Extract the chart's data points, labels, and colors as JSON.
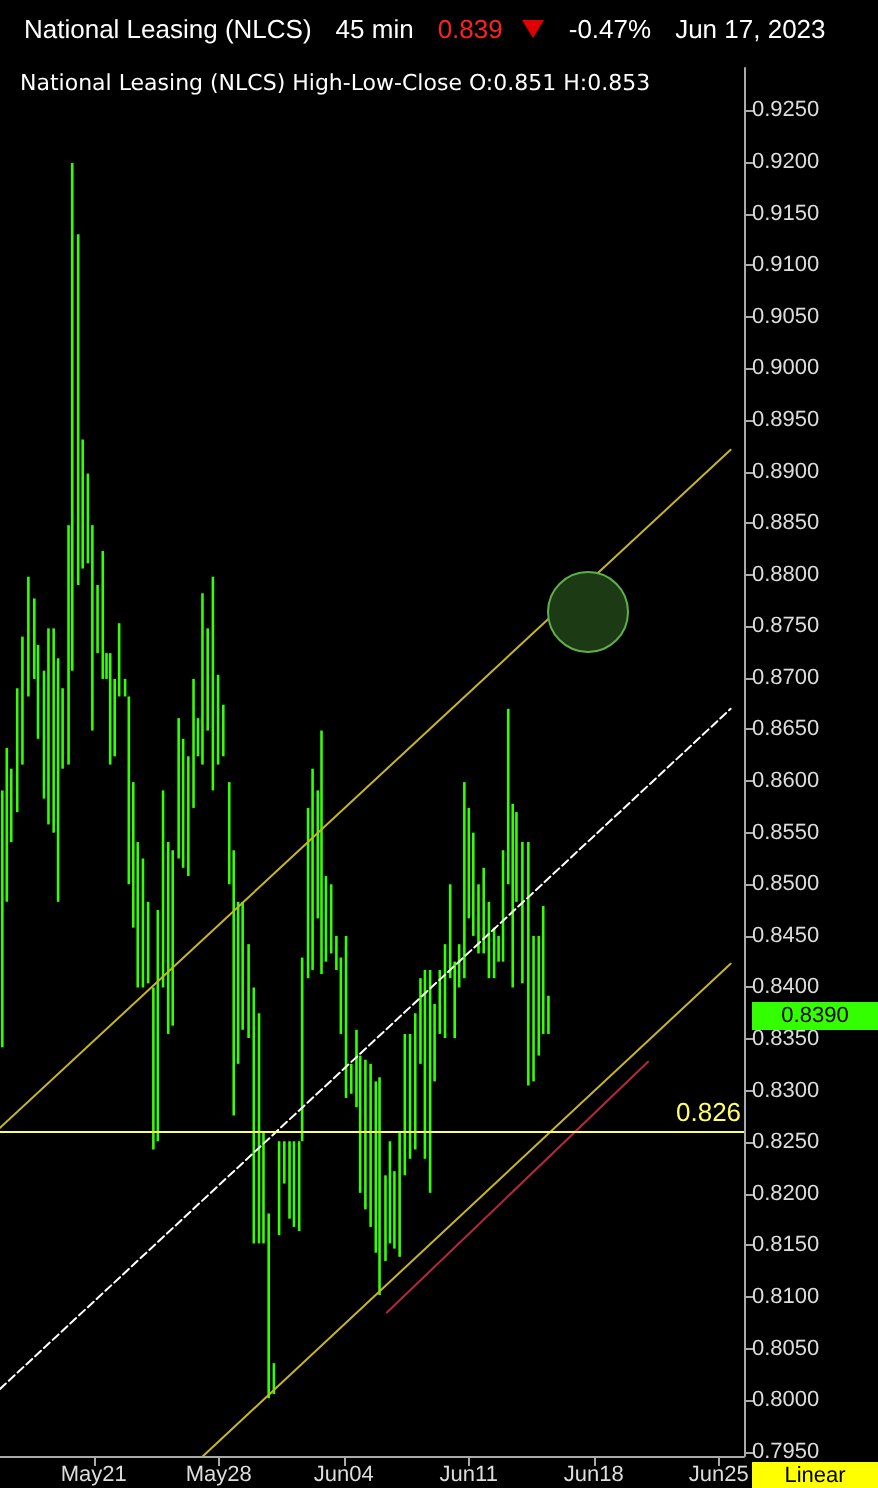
{
  "chart_data": {
    "type": "bar",
    "title": "National Leasing (NLCS)",
    "subtitle": "National Leasing (NLCS) High-Low-Close O:0.851 H:0.853",
    "annotations": [
      "45 min",
      "0.839",
      "-0.47%",
      "Jun 17, 2023",
      "Linear",
      "0.8390"
    ],
    "xlim": [
      "2023-05-15T18:00",
      "2023-06-26T10:00"
    ],
    "xticks": [
      {
        "value": "2023-05-21",
        "label": "May21"
      },
      {
        "value": "2023-05-28",
        "label": "May28"
      },
      {
        "value": "2023-06-04",
        "label": "Jun04"
      },
      {
        "value": "2023-06-11",
        "label": "Jun11"
      },
      {
        "value": "2023-06-18",
        "label": "Jun18"
      },
      {
        "value": "2023-06-25",
        "label": "Jun25"
      }
    ],
    "ylim": [
      0.7946,
      0.9291
    ],
    "yticks": [
      {
        "value": 0.795,
        "label": "0.7950"
      },
      {
        "value": 0.8,
        "label": "0.8000"
      },
      {
        "value": 0.805,
        "label": "0.8050"
      },
      {
        "value": 0.81,
        "label": "0.8100"
      },
      {
        "value": 0.815,
        "label": "0.8150"
      },
      {
        "value": 0.82,
        "label": "0.8200"
      },
      {
        "value": 0.825,
        "label": "0.8250"
      },
      {
        "value": 0.83,
        "label": "0.8300"
      },
      {
        "value": 0.835,
        "label": "0.8350"
      },
      {
        "value": 0.84,
        "label": "0.8400"
      },
      {
        "value": 0.845,
        "label": "0.8450"
      },
      {
        "value": 0.85,
        "label": "0.8500"
      },
      {
        "value": 0.855,
        "label": "0.8550"
      },
      {
        "value": 0.86,
        "label": "0.8600"
      },
      {
        "value": 0.865,
        "label": "0.8650"
      },
      {
        "value": 0.87,
        "label": "0.8700"
      },
      {
        "value": 0.875,
        "label": "0.8750"
      },
      {
        "value": 0.88,
        "label": "0.8800"
      },
      {
        "value": 0.885,
        "label": "0.8850"
      },
      {
        "value": 0.89,
        "label": "0.8900"
      },
      {
        "value": 0.895,
        "label": "0.8950"
      },
      {
        "value": 0.9,
        "label": "0.9000"
      },
      {
        "value": 0.905,
        "label": "0.9050"
      },
      {
        "value": 0.91,
        "label": "0.9100"
      },
      {
        "value": 0.915,
        "label": "0.9150"
      },
      {
        "value": 0.92,
        "label": "0.9200"
      },
      {
        "value": 0.925,
        "label": "0.9250"
      }
    ],
    "ref_lines": [
      {
        "axis": "y",
        "value": 0.826,
        "label": "0.826",
        "color": "#ffff66"
      }
    ],
    "series": [
      {
        "color": "#33ff00",
        "x": [
          "2023-05-15T21:00",
          "2023-05-16T03:00",
          "2023-05-16T09:00",
          "2023-05-16T17:00",
          "2023-05-17T00:00",
          "2023-05-17T08:00",
          "2023-05-17T16:00",
          "2023-05-17T21:00",
          "2023-05-18T05:00",
          "2023-05-18T11:00",
          "2023-05-18T18:00",
          "2023-05-19T00:00",
          "2023-05-19T06:00",
          "2023-05-19T14:00",
          "2023-05-19T19:00",
          "2023-05-20T03:00",
          "2023-05-20T09:00",
          "2023-05-20T16:00",
          "2023-05-20T22:00",
          "2023-05-21T05:00",
          "2023-05-21T12:00",
          "2023-05-21T17:00",
          "2023-05-21T22:00",
          "2023-05-22T04:00",
          "2023-05-22T10:00",
          "2023-05-22T18:00",
          "2023-05-22T23:00",
          "2023-05-23T05:00",
          "2023-05-23T11:00",
          "2023-05-23T18:00",
          "2023-05-24T01:00",
          "2023-05-24T08:00",
          "2023-05-24T14:00",
          "2023-05-24T21:00",
          "2023-05-25T04:00",
          "2023-05-25T10:00",
          "2023-05-25T18:00",
          "2023-05-26T00:00",
          "2023-05-26T07:00",
          "2023-05-26T14:00",
          "2023-05-26T20:00",
          "2023-05-27T02:00",
          "2023-05-27T09:00",
          "2023-05-27T16:00",
          "2023-05-27T23:00",
          "2023-05-28T06:00",
          "2023-05-28T14:00",
          "2023-05-28T20:00",
          "2023-05-29T02:00",
          "2023-05-29T08:00",
          "2023-05-29T16:00",
          "2023-05-29T23:00",
          "2023-05-30T06:00",
          "2023-05-30T12:00",
          "2023-05-30T19:00",
          "2023-05-31T02:00",
          "2023-05-31T09:00",
          "2023-05-31T16:00",
          "2023-05-31T23:00",
          "2023-06-01T05:00",
          "2023-06-01T12:00",
          "2023-06-01T16:00",
          "2023-06-02T00:00",
          "2023-06-02T06:00",
          "2023-06-02T13:00",
          "2023-06-02T18:00",
          "2023-06-03T00:00",
          "2023-06-03T07:00",
          "2023-06-03T14:00",
          "2023-06-03T20:00",
          "2023-06-04T03:00",
          "2023-06-04T10:00",
          "2023-06-04T17:00",
          "2023-06-04T22:00",
          "2023-06-05T05:00",
          "2023-06-05T12:00",
          "2023-06-05T19:00",
          "2023-06-06T00:00",
          "2023-06-06T08:00",
          "2023-06-06T14:00",
          "2023-06-06T20:00",
          "2023-06-07T03:00",
          "2023-06-07T10:00",
          "2023-06-07T17:00",
          "2023-06-08T00:00",
          "2023-06-08T07:00",
          "2023-06-08T13:00",
          "2023-06-08T20:00",
          "2023-06-09T02:00",
          "2023-06-09T09:00",
          "2023-06-09T16:00",
          "2023-06-09T23:00",
          "2023-06-10T05:00",
          "2023-06-10T11:00",
          "2023-06-10T18:00",
          "2023-06-11T00:00",
          "2023-06-11T06:00",
          "2023-06-11T13:00",
          "2023-06-11T20:00",
          "2023-06-12T03:00",
          "2023-06-12T10:00",
          "2023-06-12T16:00",
          "2023-06-12T22:00",
          "2023-06-13T05:00",
          "2023-06-13T11:00",
          "2023-06-13T16:00",
          "2023-06-14T00:00",
          "2023-06-14T08:00",
          "2023-06-14T15:00",
          "2023-06-14T22:00",
          "2023-06-15T04:00",
          "2023-06-15T11:00"
        ],
        "base": [
          0.8342,
          0.8483,
          0.8541,
          0.857,
          0.8616,
          0.8682,
          0.8699,
          0.8641,
          0.8583,
          0.8558,
          0.855,
          0.8483,
          0.8612,
          0.8616,
          0.8707,
          0.879,
          0.8806,
          0.8811,
          0.8649,
          0.8724,
          0.8699,
          0.8699,
          0.8616,
          0.8624,
          0.8682,
          0.8682,
          0.85,
          0.8458,
          0.84,
          0.84,
          0.8404,
          0.8243,
          0.8251,
          0.84,
          0.8355,
          0.8363,
          0.8525,
          0.8516,
          0.8508,
          0.8574,
          0.8624,
          0.8616,
          0.8649,
          0.8591,
          0.8616,
          0.8624,
          0.85,
          0.8276,
          0.8326,
          0.8359,
          0.8351,
          0.8152,
          0.8152,
          0.8152,
          0.8002,
          0.8006,
          0.816,
          0.821,
          0.8176,
          0.8168,
          0.8164,
          0.8251,
          0.8409,
          0.8417,
          0.8467,
          0.8413,
          0.8425,
          0.8433,
          0.8417,
          0.8355,
          0.8293,
          0.8297,
          0.8284,
          0.8201,
          0.8185,
          0.8168,
          0.8143,
          0.8102,
          0.8135,
          0.8152,
          0.8147,
          0.8139,
          0.8218,
          0.8234,
          0.8243,
          0.8326,
          0.8234,
          0.8201,
          0.8309,
          0.8355,
          0.8351,
          0.8409,
          0.8351,
          0.84,
          0.8409,
          0.8467,
          0.845,
          0.8433,
          0.8433,
          0.8409,
          0.8409,
          0.8425,
          0.8425,
          0.85,
          0.84,
          0.8483,
          0.8404,
          0.8305,
          0.8309,
          0.8334,
          0.8355,
          0.8355
        ],
        "values": [
          0.0249,
          0.0149,
          0.0071,
          0.012,
          0.0124,
          0.0116,
          0.0078,
          0.0091,
          0.0124,
          0.019,
          0.0198,
          0.0236,
          0.0078,
          0.0232,
          0.0492,
          0.034,
          0.0125,
          0.0087,
          0.0199,
          0.0066,
          0.0124,
          0.0025,
          0.0108,
          0.0075,
          0.0071,
          0.0017,
          0.0182,
          0.0141,
          0.0141,
          0.0125,
          0.0079,
          0.0157,
          0.0224,
          0.0191,
          0.0186,
          0.017,
          0.0136,
          0.0125,
          0.0116,
          0.0125,
          0.0037,
          0.0166,
          0.0099,
          0.0207,
          0.0087,
          0.005,
          0.0099,
          0.0257,
          0.0157,
          0.0124,
          0.0091,
          0.0248,
          0.0223,
          0.0107,
          0.0179,
          0.003,
          0.0091,
          0.0041,
          0.0075,
          0.0083,
          0.0087,
          0.0178,
          0.0165,
          0.0195,
          0.0124,
          0.0236,
          0.0083,
          0.0067,
          0.0033,
          0.0074,
          0.0157,
          0.0029,
          0.0075,
          0.0133,
          0.0145,
          0.0158,
          0.0166,
          0.0211,
          0.0083,
          0.0099,
          0.0075,
          0.012,
          0.0137,
          0.0121,
          0.0132,
          0.0083,
          0.0183,
          0.0216,
          0.0075,
          0.0062,
          0.0091,
          0.0091,
          0.0074,
          0.0042,
          0.019,
          0.0107,
          0.01,
          0.0067,
          0.0083,
          0.0074,
          0.0049,
          0.0025,
          0.0108,
          0.017,
          0.0178,
          0.0087,
          0.0137,
          0.0236,
          0.0141,
          0.0116,
          0.0124,
          0.0037
        ]
      },
      {
        "type": "line",
        "color": "#c8b428",
        "x": [
          "2023-05-15T18:00",
          "2023-06-25T16:00"
        ],
        "values": [
          0.8264,
          0.8921
        ]
      },
      {
        "type": "line",
        "color": "#ffffff",
        "line_style": "dashed",
        "x": [
          "2023-05-15T18:00",
          "2023-06-25T16:00"
        ],
        "values": [
          0.8011,
          0.867
        ]
      },
      {
        "type": "line",
        "color": "#c8b428",
        "x": [
          "2023-05-27T03:00",
          "2023-06-25T16:00"
        ],
        "values": [
          0.7946,
          0.8423
        ]
      },
      {
        "type": "line",
        "color": "#b4283c",
        "x": [
          "2023-06-06T10:00",
          "2023-06-21T01:00"
        ],
        "values": [
          0.8085,
          0.8328
        ]
      }
    ]
  }
}
